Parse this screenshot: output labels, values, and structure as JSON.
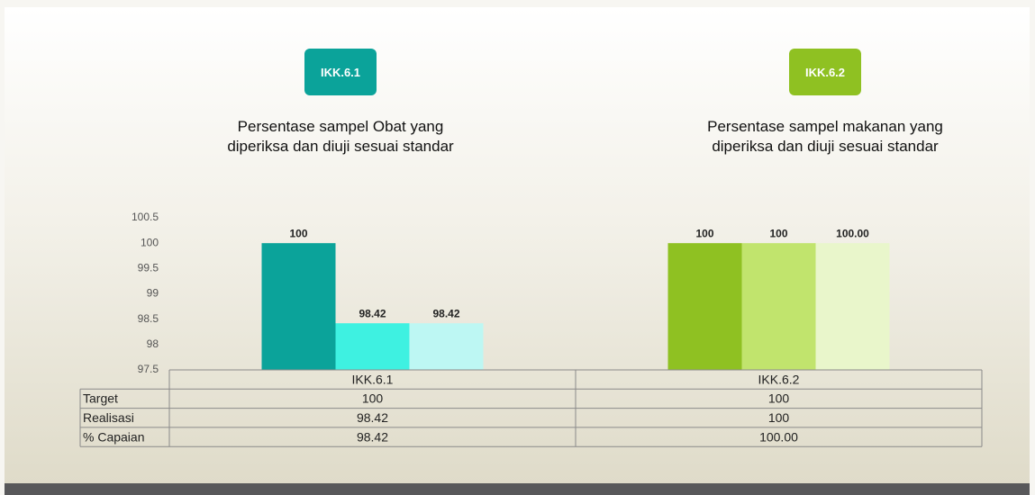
{
  "chart_data": {
    "type": "bar",
    "annotations": [
      {
        "badge": "IKK.6.1",
        "text": "Persentase sampel Obat yang diperiksa  dan diuji sesuai standar"
      },
      {
        "badge": "IKK.6.2",
        "text": "Persentase sampel makanan yang diperiksa dan diuji sesuai standar"
      }
    ],
    "categories": [
      "IKK.6.1",
      "IKK.6.2"
    ],
    "series": [
      {
        "name": "Target",
        "colors": [
          "#0ba39a",
          "#8fc122"
        ],
        "values": [
          100,
          100
        ]
      },
      {
        "name": "Realisasi",
        "colors": [
          "#3ef1e1",
          "#c1e46d"
        ],
        "values": [
          98.42,
          100
        ]
      },
      {
        "name": "% Capaian",
        "colors": [
          "#bdf7f3",
          "#e9f6cb"
        ],
        "values": [
          98.42,
          100
        ],
        "value_labels": [
          "98.42",
          "100.00"
        ]
      }
    ],
    "ylim": [
      97.5,
      100.5
    ],
    "yticks": [
      97.5,
      98,
      98.5,
      99,
      99.5,
      100,
      100.5
    ],
    "data_table": true
  }
}
